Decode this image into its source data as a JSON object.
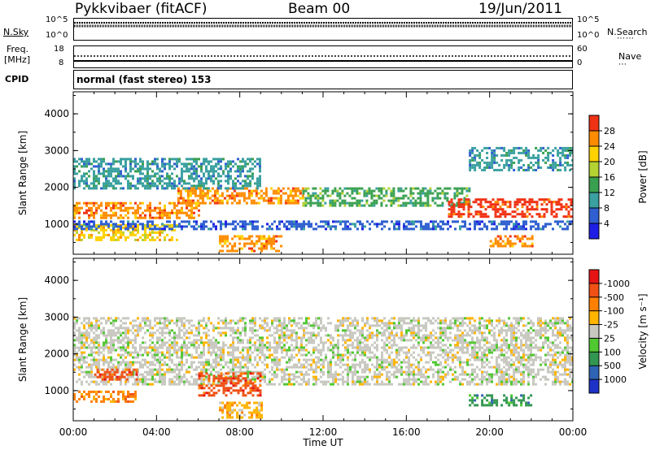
{
  "header": {
    "station": "Pykkvibaer (fitACF)",
    "beam": "Beam 00",
    "date": "19/Jun/2011"
  },
  "top_strips": {
    "nsky_label": "N.Sky",
    "nsearch_label": "N.Search",
    "freq_label_1": "Freq.",
    "freq_label_2": "[MHz]",
    "nave_label": "Nave",
    "cpid_label": "CPID",
    "cpid_value": "normal (fast stereo) 153",
    "noise_ticks_left": [
      "10^5",
      "10^0"
    ],
    "noise_ticks_right": [
      "10^5",
      "10^0"
    ],
    "freq_ticks_left": [
      "18",
      "8"
    ],
    "freq_ticks_right": [
      "60",
      "0"
    ]
  },
  "chart_data": [
    {
      "type": "heatmap",
      "panel": "power",
      "ylabel": "Slant Range [km]",
      "ylim": [
        180,
        4600
      ],
      "yticks": [
        1000,
        2000,
        3000,
        4000
      ],
      "xlim": [
        0,
        24
      ],
      "colorbar": {
        "label": "Power [dB]",
        "ticks": [
          "4",
          "8",
          "12",
          "16",
          "20",
          "24",
          "28"
        ],
        "colors": [
          "#1e1ee6",
          "#2f5fd0",
          "#3aa0a0",
          "#3aa050",
          "#b4d232",
          "#ffd200",
          "#ff8c00",
          "#f03214"
        ]
      },
      "bands": [
        {
          "t0": 0,
          "t1": 5,
          "r0": 600,
          "r1": 1000,
          "level": 5
        },
        {
          "t0": 0,
          "t1": 6,
          "r0": 1200,
          "r1": 1600,
          "level": 6
        },
        {
          "t0": 5,
          "t1": 11,
          "r0": 1600,
          "r1": 2000,
          "level": 6
        },
        {
          "t0": 11,
          "t1": 19,
          "r0": 1500,
          "r1": 2000,
          "level": 3
        },
        {
          "t0": 18,
          "t1": 24,
          "r0": 1200,
          "r1": 1700,
          "level": 7
        },
        {
          "t0": 7,
          "t1": 10,
          "r0": 300,
          "r1": 700,
          "level": 6
        },
        {
          "t0": 20,
          "t1": 22,
          "r0": 400,
          "r1": 700,
          "level": 6
        },
        {
          "t0": 0,
          "t1": 9,
          "r0": 2000,
          "r1": 2800,
          "level": 2
        },
        {
          "t0": 19,
          "t1": 24,
          "r0": 2500,
          "r1": 3100,
          "level": 2
        },
        {
          "t0": 0,
          "t1": 24,
          "r0": 900,
          "r1": 1100,
          "level": 1
        }
      ]
    },
    {
      "type": "heatmap",
      "panel": "velocity",
      "ylabel": "Slant Range [km]",
      "xlabel": "Time UT",
      "ylim": [
        180,
        4600
      ],
      "yticks": [
        1000,
        2000,
        3000,
        4000
      ],
      "xlim": [
        0,
        24
      ],
      "xticks": [
        "00:00",
        "04:00",
        "08:00",
        "12:00",
        "16:00",
        "20:00",
        "00:00"
      ],
      "colorbar": {
        "label": "Velocity [m s⁻¹]",
        "ticks": [
          "1000",
          "500",
          "100",
          "25",
          "-25",
          "-100",
          "-500",
          "-1000"
        ],
        "colors": [
          "#1e32c8",
          "#2f64b4",
          "#329650",
          "#50c832",
          "#c8c8c0",
          "#ffb400",
          "#ff8000",
          "#f05014",
          "#e61414"
        ]
      },
      "bands": [
        {
          "t0": 0,
          "t1": 24,
          "r0": 1200,
          "r1": 2200,
          "level": 4
        },
        {
          "t0": 0,
          "t1": 3,
          "r0": 700,
          "r1": 1000,
          "level": 6
        },
        {
          "t0": 1,
          "t1": 3,
          "r0": 1300,
          "r1": 1600,
          "level": 7
        },
        {
          "t0": 6,
          "t1": 9,
          "r0": 900,
          "r1": 1500,
          "level": 7
        },
        {
          "t0": 7,
          "t1": 9,
          "r0": 300,
          "r1": 700,
          "level": 5
        },
        {
          "t0": 19,
          "t1": 22,
          "r0": 600,
          "r1": 900,
          "level": 2
        },
        {
          "t0": 0,
          "t1": 24,
          "r0": 2200,
          "r1": 3000,
          "level": 4
        }
      ]
    }
  ]
}
